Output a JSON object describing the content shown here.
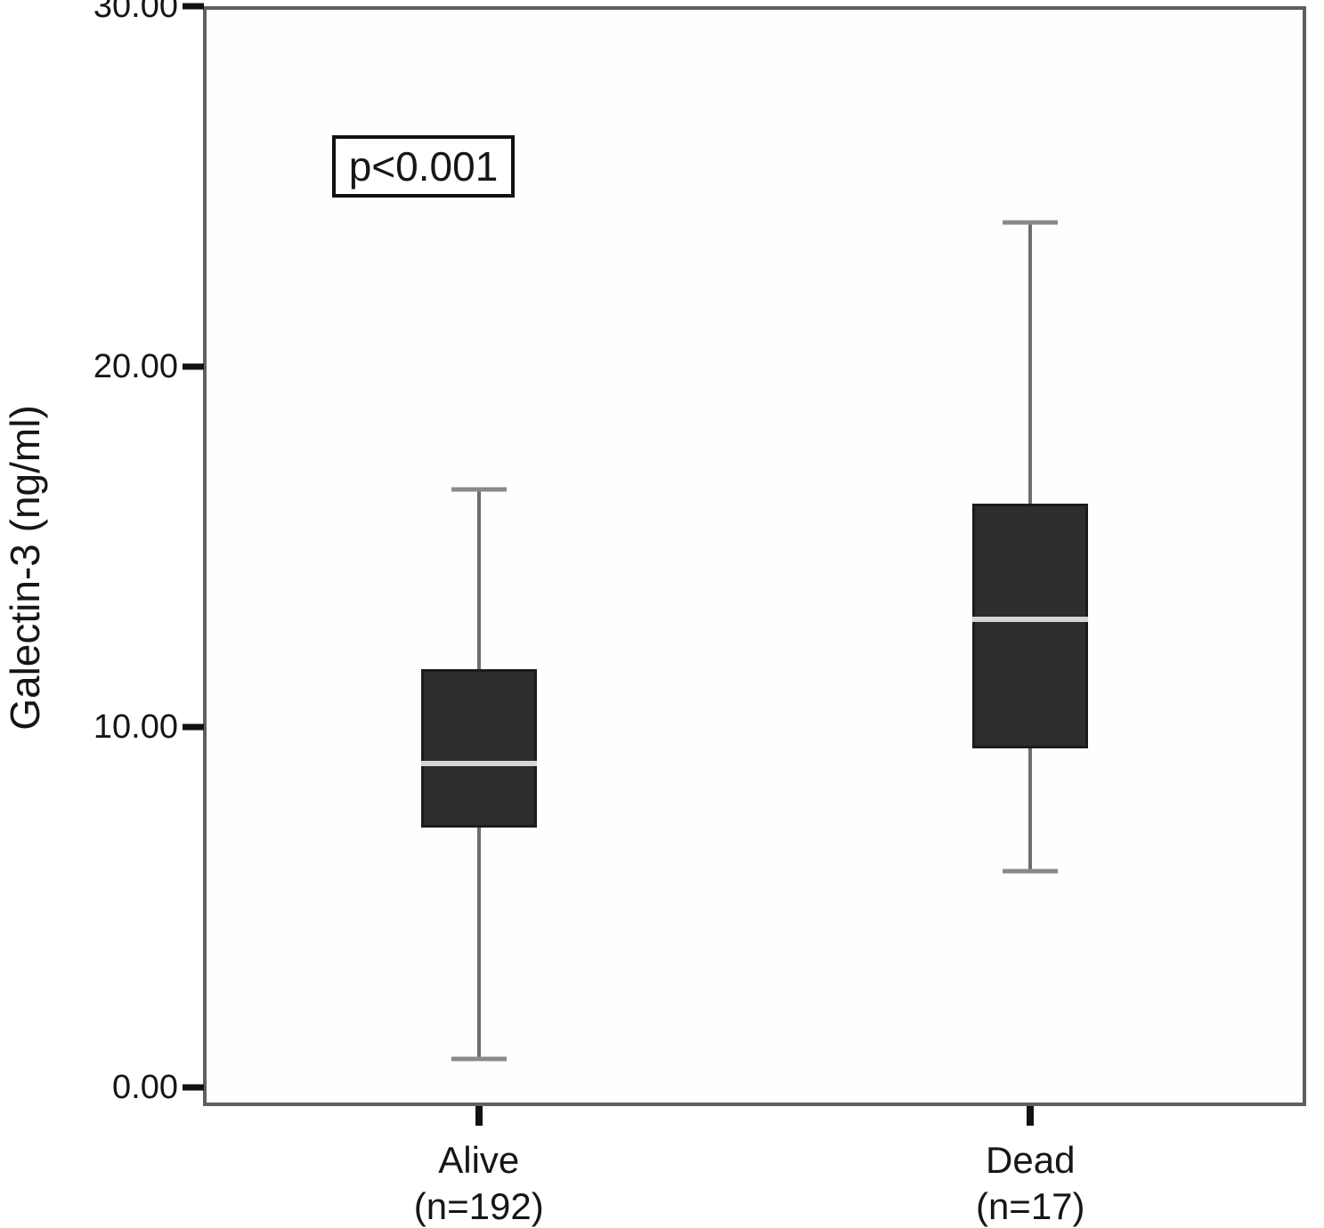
{
  "figure": {
    "p_value_label": "p<0.001",
    "y_axis_title": "Galectin-3 (ng/ml)"
  },
  "colors": {
    "box_fill": "#2d2d2d",
    "box_border": "#1b1b1b",
    "median_line": "#d6d6d6",
    "whisker": "#6e6e6e",
    "whisker_cap": "#8a8a8a",
    "frame_border": "#5f5f5f",
    "tick": "#111111",
    "text": "#161616",
    "background": "#ffffff"
  },
  "chart_data": {
    "type": "boxplot",
    "title": "",
    "xlabel": "",
    "ylabel": "Galectin-3 (ng/ml)",
    "ylim": [
      0,
      30
    ],
    "grid": false,
    "annotation": "p<0.001",
    "yticks": [
      {
        "value": 0,
        "label": "0.00"
      },
      {
        "value": 10,
        "label": "10.00"
      },
      {
        "value": 20,
        "label": "20.00"
      },
      {
        "value": 30,
        "label": "30.00"
      }
    ],
    "groups": [
      {
        "label": "Alive",
        "sublabel": "(n=192)",
        "n": 192,
        "whisker_low": 0.8,
        "q1": 7.2,
        "median": 9.0,
        "q3": 11.6,
        "whisker_high": 16.6
      },
      {
        "label": "Dead",
        "sublabel": "(n=17)",
        "n": 17,
        "whisker_low": 6.0,
        "q1": 9.4,
        "median": 13.0,
        "q3": 16.2,
        "whisker_high": 24.0
      }
    ]
  }
}
